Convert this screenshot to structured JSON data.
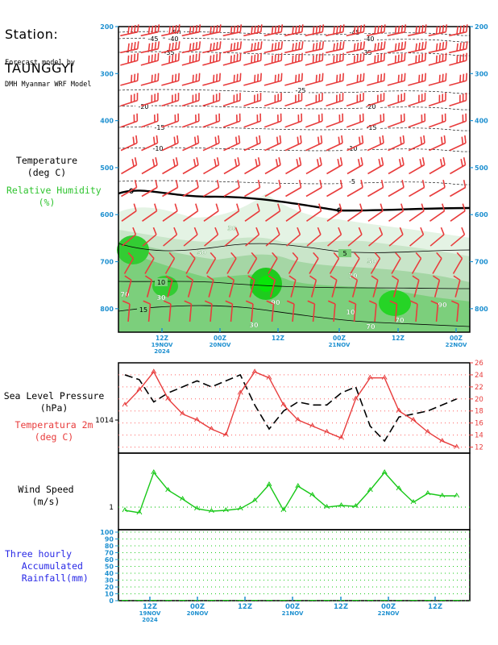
{
  "station": {
    "label": "Station:",
    "name": "TAUNGGYI"
  },
  "model_caption": {
    "line1": "Forecast model by",
    "line2": "DMH Myanmar WRF Model"
  },
  "panel_labels": {
    "temperature": "Temperature\n(deg C)",
    "humidity": "Relative Humidity\n(%)",
    "slp": "Sea Level Pressure\n(hPa)",
    "t2m": "Temperatura 2m\n(deg C)",
    "wind": "Wind Speed\n(m/s)",
    "rain": "Three hourly\n   Accumulated\n   Rainfall(mm)"
  },
  "colors": {
    "temperature_line": "#000000",
    "humidity": "#2fc42f",
    "slp_line": "#000000",
    "t2m_line": "#e83c3c",
    "wind_line": "#19c819",
    "rain_text": "#2828e6",
    "axis_label": "#1e90d0",
    "barb": "#e83c3c"
  },
  "time_axis": {
    "ticks": [
      {
        "main": "12Z",
        "sub": "19NOV",
        "sub2": "2024"
      },
      {
        "main": "00Z",
        "sub": "20NOV",
        "sub2": ""
      },
      {
        "main": "12Z",
        "sub": "",
        "sub2": ""
      },
      {
        "main": "00Z",
        "sub": "21NOV",
        "sub2": ""
      },
      {
        "main": "12Z",
        "sub": "",
        "sub2": ""
      },
      {
        "main": "00Z",
        "sub": "22NOV",
        "sub2": ""
      }
    ]
  },
  "chart_data": [
    {
      "type": "heatmap",
      "description_of_axes": "pressure-time cross section",
      "y_axis": {
        "label": "",
        "unit": "hPa",
        "ticks": [
          200,
          300,
          400,
          500,
          600,
          700,
          800
        ],
        "range": [
          200,
          850
        ],
        "inverted": true
      },
      "temperature_contour_labels": [
        "-50",
        "-45",
        "-40",
        "-35",
        "-25",
        "-20",
        "-15",
        "-10",
        "-5",
        "0",
        "5",
        "10",
        "15"
      ],
      "humidity_contour_labels": [
        "30",
        "50",
        "70",
        "90"
      ],
      "zero_isotherm_hpa": 580,
      "wind_barbs": true
    },
    {
      "type": "line",
      "series": [
        {
          "name": "Sea Level Pressure",
          "values": [
            24.0,
            23.2,
            19.5,
            21.0,
            22.0,
            23.0,
            22.0,
            23.0,
            24.0,
            19.0,
            15.0,
            18.0,
            19.5,
            19.0,
            19.0,
            21.0,
            22.0,
            15.5,
            13.0,
            17.0,
            17.5,
            18.0,
            19.0,
            20.0
          ]
        },
        {
          "name": "Temperatura 2m",
          "values": [
            19.0,
            21.5,
            24.5,
            20.0,
            17.5,
            16.5,
            15.0,
            14.0,
            21.0,
            24.5,
            23.5,
            19.0,
            16.5,
            15.5,
            14.5,
            13.5,
            20.0,
            23.5,
            23.5,
            18.0,
            16.5,
            14.5,
            13.0,
            12.0
          ]
        }
      ],
      "y_axis_left": {
        "ticks": [
          "1014"
        ]
      },
      "y_axis_right": {
        "ticks": [
          12,
          14,
          16,
          18,
          20,
          22,
          24,
          26
        ],
        "range": [
          11,
          26
        ]
      }
    },
    {
      "type": "line",
      "series": [
        {
          "name": "Wind Speed",
          "values": [
            0.8,
            0.5,
            5.5,
            3.3,
            2.2,
            1.0,
            0.7,
            0.8,
            1.0,
            2.0,
            4.0,
            0.8,
            3.8,
            2.7,
            1.2,
            1.4,
            1.3,
            3.3,
            5.5,
            3.5,
            1.8,
            2.9,
            2.6,
            2.6
          ]
        }
      ],
      "y_axis": {
        "ticks": [
          "1"
        ]
      }
    },
    {
      "type": "bar",
      "series": [
        {
          "name": "Three hourly Accumulated Rainfall",
          "values": [
            0,
            0,
            0,
            0,
            0,
            0,
            0,
            0,
            0,
            0,
            0,
            0,
            0,
            0,
            0,
            0,
            0,
            0,
            0,
            0,
            0,
            0,
            0,
            0
          ]
        }
      ],
      "y_axis": {
        "ticks": [
          0,
          10,
          20,
          30,
          40,
          50,
          60,
          70,
          80,
          90,
          100
        ],
        "range": [
          0,
          100
        ]
      }
    }
  ]
}
